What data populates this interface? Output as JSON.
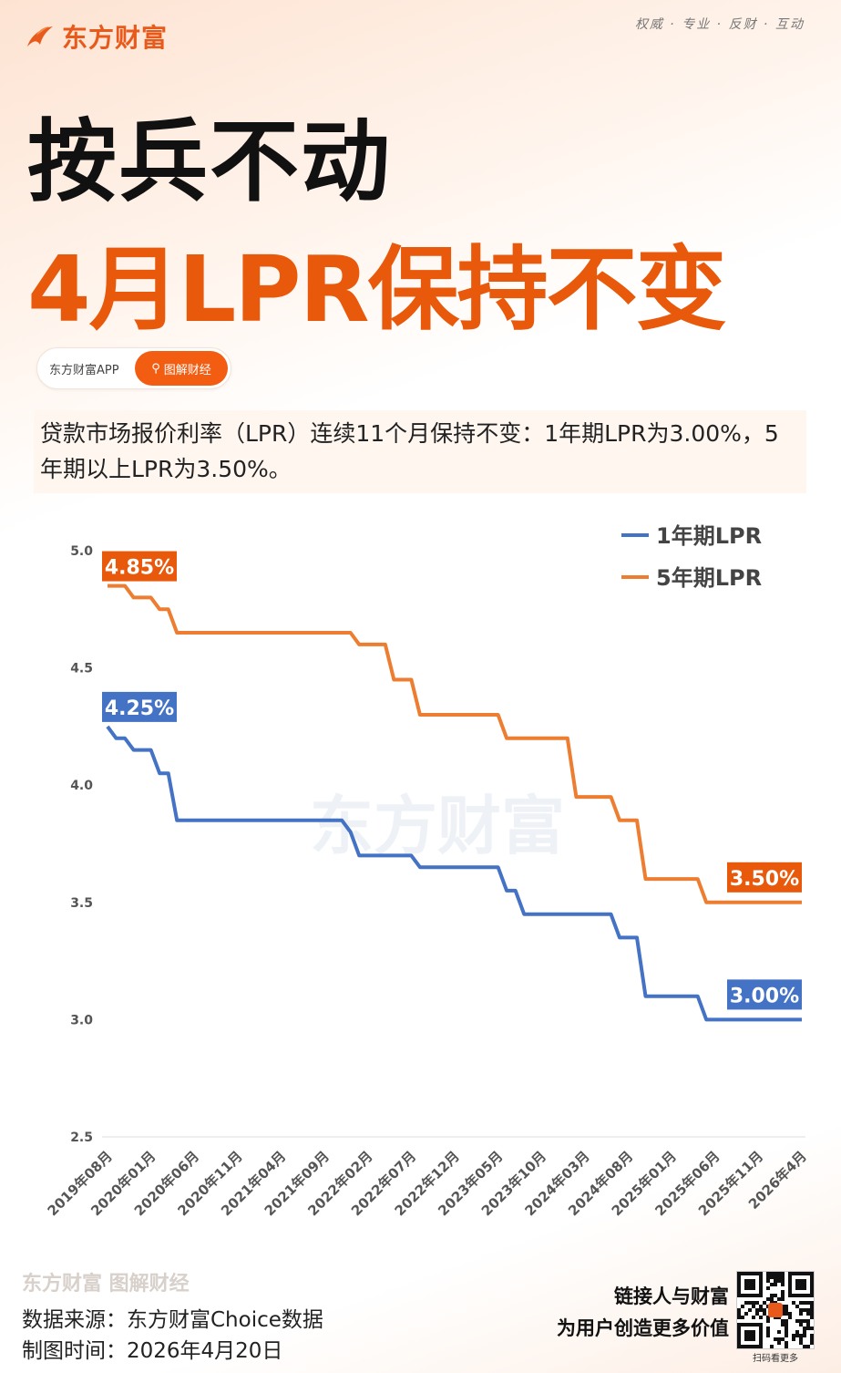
{
  "brand": {
    "name": "东方财富",
    "slogan": "权威 · 专业 · 反财 · 互动"
  },
  "title": {
    "line1": "按兵不动",
    "line2": "4月LPR保持不变"
  },
  "pill": {
    "app": "东方财富APP",
    "search": "图解财经"
  },
  "description": "贷款市场报价利率（LPR）连续11个月保持不变：1年期LPR为3.00%，5年期以上LPR为3.50%。",
  "watermark": "东方财富",
  "colors": {
    "one_year": "#4472C4",
    "five_year": "#ED7D31",
    "accent": "#E8590C"
  },
  "chart_data": {
    "type": "line",
    "step_changes_note": "",
    "x_start": "2019-08",
    "x_end": "2026-04",
    "x_tick_labels": [
      "2019年08月",
      "2020年01月",
      "2020年06月",
      "2020年11月",
      "2021年04月",
      "2021年09月",
      "2022年02月",
      "2022年07月",
      "2022年12月",
      "2023年05月",
      "2023年10月",
      "2024年03月",
      "2024年08月",
      "2025年01月",
      "2025年06月",
      "2025年11月",
      "2026年4月"
    ],
    "y_ticks": [
      "2.5",
      "3.0",
      "3.5",
      "4.0",
      "4.5",
      "5.0"
    ],
    "ylim": [
      2.5,
      5.0
    ],
    "grid": false,
    "legend_position": "top-right",
    "series": [
      {
        "name": "1年期LPR",
        "changes": [
          [
            "2019-08",
            4.25
          ],
          [
            "2019-09",
            4.2
          ],
          [
            "2019-11",
            4.15
          ],
          [
            "2020-02",
            4.05
          ],
          [
            "2020-04",
            3.85
          ],
          [
            "2021-12",
            3.8
          ],
          [
            "2022-01",
            3.7
          ],
          [
            "2022-08",
            3.65
          ],
          [
            "2023-06",
            3.55
          ],
          [
            "2023-08",
            3.45
          ],
          [
            "2024-07",
            3.35
          ],
          [
            "2024-10",
            3.1
          ],
          [
            "2025-05",
            3.0
          ]
        ],
        "start_label": "4.25%",
        "end_label": "3.00%"
      },
      {
        "name": "5年期LPR",
        "changes": [
          [
            "2019-08",
            4.85
          ],
          [
            "2019-11",
            4.8
          ],
          [
            "2020-02",
            4.75
          ],
          [
            "2020-04",
            4.65
          ],
          [
            "2022-01",
            4.6
          ],
          [
            "2022-05",
            4.45
          ],
          [
            "2022-08",
            4.3
          ],
          [
            "2023-06",
            4.2
          ],
          [
            "2024-02",
            3.95
          ],
          [
            "2024-07",
            3.85
          ],
          [
            "2024-10",
            3.6
          ],
          [
            "2025-05",
            3.5
          ]
        ],
        "start_label": "4.85%",
        "end_label": "3.50%"
      }
    ]
  },
  "footer": {
    "logo": "东方财富 图解财经",
    "source": "数据来源：东方财富Choice数据",
    "date": "制图时间：2026年4月20日",
    "slogan1": "链接人与财富",
    "slogan2": "为用户创造更多价值",
    "qr_caption": "扫码看更多"
  }
}
